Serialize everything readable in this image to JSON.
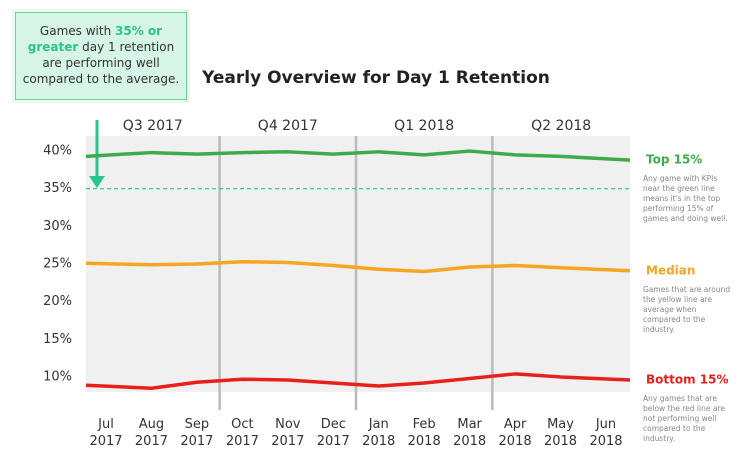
{
  "chart_data": {
    "type": "line",
    "title": "Yearly Overview for Day 1 Retention",
    "annotation": {
      "before": "Games with ",
      "highlight": "35% or greater",
      "after": " day 1 retention are performing well compared to the average."
    },
    "reference_line": {
      "value": 35,
      "color": "#2bc48a"
    },
    "quarters": [
      "Q3 2017",
      "Q4 2017",
      "Q1 2018",
      "Q2 2018"
    ],
    "categories": [
      "Jul 2017",
      "Aug 2017",
      "Sep 2017",
      "Oct 2017",
      "Nov 2017",
      "Dec 2017",
      "Jan 2018",
      "Feb 2018",
      "Mar 2018",
      "Apr 2018",
      "May 2018",
      "Jun 2018"
    ],
    "series": [
      {
        "name": "Top 15%",
        "color": "#3daa4c",
        "description": "Any game with KPIs near the green line means it's in the top performing 15% of games and doing well.",
        "values": [
          39.3,
          39.8,
          39.6,
          39.8,
          39.9,
          39.6,
          39.9,
          39.5,
          40.0,
          39.5,
          39.3,
          38.8
        ]
      },
      {
        "name": "Median",
        "color": "#f5a623",
        "description": "Games that are around the yellow line are average when compared to the industry.",
        "values": [
          25.1,
          24.9,
          25.0,
          25.3,
          25.2,
          24.8,
          24.3,
          24.0,
          24.6,
          24.8,
          24.5,
          24.1
        ]
      },
      {
        "name": "Bottom 15%",
        "color": "#e8201c",
        "description": "Any games that are below the red line are not performing well compared to the industry.",
        "values": [
          8.9,
          8.5,
          9.3,
          9.7,
          9.6,
          9.2,
          8.8,
          9.2,
          9.8,
          10.4,
          10.0,
          9.6
        ]
      }
    ],
    "ylim": [
      8,
      42
    ],
    "yticks": [
      {
        "value": 10,
        "label": "10%"
      },
      {
        "value": 15,
        "label": "15%"
      },
      {
        "value": 20,
        "label": "20%"
      },
      {
        "value": 25,
        "label": "25%"
      },
      {
        "value": 30,
        "label": "30%"
      },
      {
        "value": 35,
        "label": "35%"
      },
      {
        "value": 40,
        "label": "40%"
      }
    ]
  }
}
